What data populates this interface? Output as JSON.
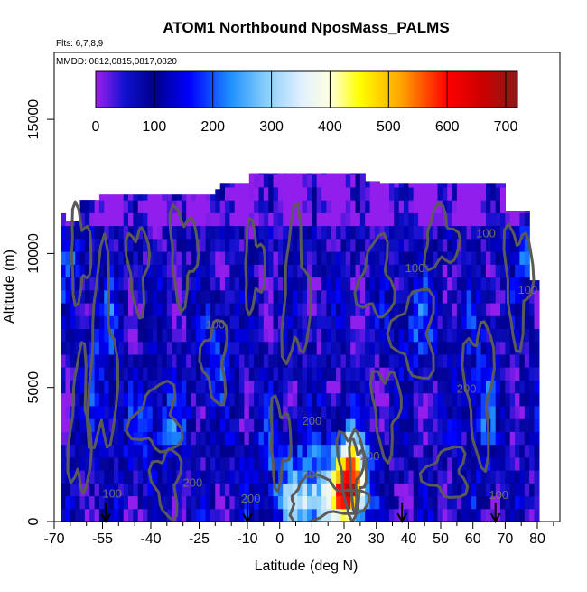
{
  "chart_data": {
    "type": "heatmap",
    "title": "ATOM1 Northbound NposMass_PALMS",
    "flights_note": "Flts: 6,7,8,9",
    "dates_note": "MMDD: 0812,0815,0817,0820",
    "xlabel": "Latitude (deg N)",
    "ylabel": "Altitude (m)",
    "xlim": [
      -70,
      87
    ],
    "ylim": [
      0,
      17500
    ],
    "x_tick_labels": [
      "-70",
      "-55",
      "-40",
      "-25",
      "-10",
      "0",
      "10",
      "20",
      "30",
      "40",
      "50",
      "60",
      "70",
      "80"
    ],
    "x_tick_values": [
      -70,
      -55,
      -40,
      -25,
      -10,
      0,
      10,
      20,
      30,
      40,
      50,
      60,
      70,
      80
    ],
    "y_tick_labels": [
      "0",
      "5000",
      "10000",
      "15000"
    ],
    "y_tick_values": [
      0,
      5000,
      10000,
      15000
    ],
    "colorbar": {
      "min": 0,
      "max": 720,
      "tick_labels": [
        "0",
        "100",
        "200",
        "300",
        "400",
        "500",
        "600",
        "700"
      ],
      "tick_values": [
        0,
        100,
        200,
        300,
        400,
        500,
        600,
        700
      ],
      "stops": [
        {
          "v": 0,
          "c": "#a020f0"
        },
        {
          "v": 50,
          "c": "#1010d0"
        },
        {
          "v": 100,
          "c": "#00008b"
        },
        {
          "v": 160,
          "c": "#0000ff"
        },
        {
          "v": 230,
          "c": "#1e90ff"
        },
        {
          "v": 290,
          "c": "#87cefa"
        },
        {
          "v": 350,
          "c": "#e0f0ff"
        },
        {
          "v": 400,
          "c": "#ffffe0"
        },
        {
          "v": 450,
          "c": "#ffff00"
        },
        {
          "v": 520,
          "c": "#ffa500"
        },
        {
          "v": 600,
          "c": "#ff0000"
        },
        {
          "v": 660,
          "c": "#cc0000"
        },
        {
          "v": 720,
          "c": "#8b1a1a"
        }
      ]
    },
    "contour_labels": [
      "100",
      "100",
      "100",
      "100",
      "100",
      "200",
      "200",
      "200",
      "200",
      "200",
      "300",
      "100"
    ],
    "profile_latitudes": [
      -54,
      -10,
      38,
      67
    ],
    "grid": false,
    "legend": "colorbar top"
  }
}
